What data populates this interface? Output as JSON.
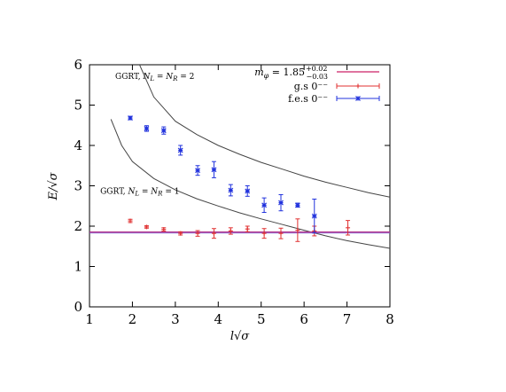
{
  "chart_data": {
    "type": "scatter",
    "xlabel": "l√σ",
    "ylabel": "E/√σ",
    "xlim": [
      1,
      8
    ],
    "ylim": [
      0,
      6
    ],
    "xticks": [
      "1",
      "2",
      "3",
      "4",
      "5",
      "6",
      "7",
      "8"
    ],
    "yticks": [
      "0",
      "1",
      "2",
      "3",
      "4",
      "5",
      "6"
    ],
    "grid": false,
    "legend_position": "top-right",
    "annotations": [
      {
        "text": "GGRT, N_L = N_R = 2",
        "x": 1.6,
        "y": 5.65
      },
      {
        "text": "GGRT, N_L = N_R = 1",
        "x": 1.25,
        "y": 2.8
      }
    ],
    "series": [
      {
        "name": "m_φ = 1.85 +0.02 −0.03",
        "kind": "band",
        "color": "#cc2266",
        "band_color": "#6a6cf0",
        "value": 1.85,
        "err_plus": 0.02,
        "err_minus": 0.03
      },
      {
        "name": "g.s 0⁻⁻",
        "kind": "errorbar",
        "color": "#e03030",
        "marker": "plus",
        "points": [
          {
            "x": 1.95,
            "y": 2.13,
            "err": 0.04
          },
          {
            "x": 2.33,
            "y": 1.98,
            "err": 0.03
          },
          {
            "x": 2.73,
            "y": 1.92,
            "err": 0.04
          },
          {
            "x": 3.12,
            "y": 1.82,
            "err": 0.04
          },
          {
            "x": 3.52,
            "y": 1.82,
            "err": 0.07
          },
          {
            "x": 3.9,
            "y": 1.82,
            "err": 0.12
          },
          {
            "x": 4.29,
            "y": 1.88,
            "err": 0.08
          },
          {
            "x": 4.68,
            "y": 1.93,
            "err": 0.07
          },
          {
            "x": 5.07,
            "y": 1.82,
            "err": 0.12
          },
          {
            "x": 5.46,
            "y": 1.82,
            "err": 0.13
          },
          {
            "x": 5.85,
            "y": 1.9,
            "err": 0.28
          },
          {
            "x": 6.24,
            "y": 1.88,
            "err": 0.12
          },
          {
            "x": 7.02,
            "y": 1.96,
            "err": 0.18
          }
        ]
      },
      {
        "name": "f.e.s 0⁻⁻",
        "kind": "errorbar",
        "color": "#2233dd",
        "marker": "star",
        "points": [
          {
            "x": 1.95,
            "y": 4.68,
            "err": 0.04
          },
          {
            "x": 2.33,
            "y": 4.42,
            "err": 0.07
          },
          {
            "x": 2.73,
            "y": 4.37,
            "err": 0.09
          },
          {
            "x": 3.12,
            "y": 3.88,
            "err": 0.12
          },
          {
            "x": 3.52,
            "y": 3.38,
            "err": 0.12
          },
          {
            "x": 3.9,
            "y": 3.4,
            "err": 0.2
          },
          {
            "x": 4.29,
            "y": 2.89,
            "err": 0.14
          },
          {
            "x": 4.68,
            "y": 2.87,
            "err": 0.13
          },
          {
            "x": 5.07,
            "y": 2.52,
            "err": 0.18
          },
          {
            "x": 5.46,
            "y": 2.58,
            "err": 0.2
          },
          {
            "x": 5.85,
            "y": 2.52,
            "err": 0.05
          },
          {
            "x": 6.24,
            "y": 2.25,
            "err": 0.42
          }
        ]
      },
      {
        "kind": "curve",
        "color": "#444444",
        "annotation": "GGRT, N_L = N_R = 2",
        "points": [
          {
            "x": 2.0,
            "y": 6.4
          },
          {
            "x": 2.5,
            "y": 5.2
          },
          {
            "x": 3.0,
            "y": 4.6
          },
          {
            "x": 3.5,
            "y": 4.27
          },
          {
            "x": 4.0,
            "y": 4.0
          },
          {
            "x": 4.5,
            "y": 3.78
          },
          {
            "x": 5.0,
            "y": 3.58
          },
          {
            "x": 5.5,
            "y": 3.41
          },
          {
            "x": 6.0,
            "y": 3.24
          },
          {
            "x": 6.5,
            "y": 3.09
          },
          {
            "x": 7.0,
            "y": 2.96
          },
          {
            "x": 7.5,
            "y": 2.83
          },
          {
            "x": 8.0,
            "y": 2.72
          }
        ]
      },
      {
        "kind": "curve",
        "color": "#444444",
        "annotation": "GGRT, N_L = N_R = 1",
        "points": [
          {
            "x": 1.5,
            "y": 4.65
          },
          {
            "x": 1.75,
            "y": 4.0
          },
          {
            "x": 2.0,
            "y": 3.6
          },
          {
            "x": 2.5,
            "y": 3.18
          },
          {
            "x": 3.0,
            "y": 2.9
          },
          {
            "x": 3.5,
            "y": 2.68
          },
          {
            "x": 4.0,
            "y": 2.5
          },
          {
            "x": 4.5,
            "y": 2.33
          },
          {
            "x": 5.0,
            "y": 2.18
          },
          {
            "x": 5.5,
            "y": 2.04
          },
          {
            "x": 6.0,
            "y": 1.9
          },
          {
            "x": 6.5,
            "y": 1.76
          },
          {
            "x": 7.0,
            "y": 1.64
          },
          {
            "x": 7.5,
            "y": 1.54
          },
          {
            "x": 8.0,
            "y": 1.45
          }
        ]
      }
    ]
  }
}
